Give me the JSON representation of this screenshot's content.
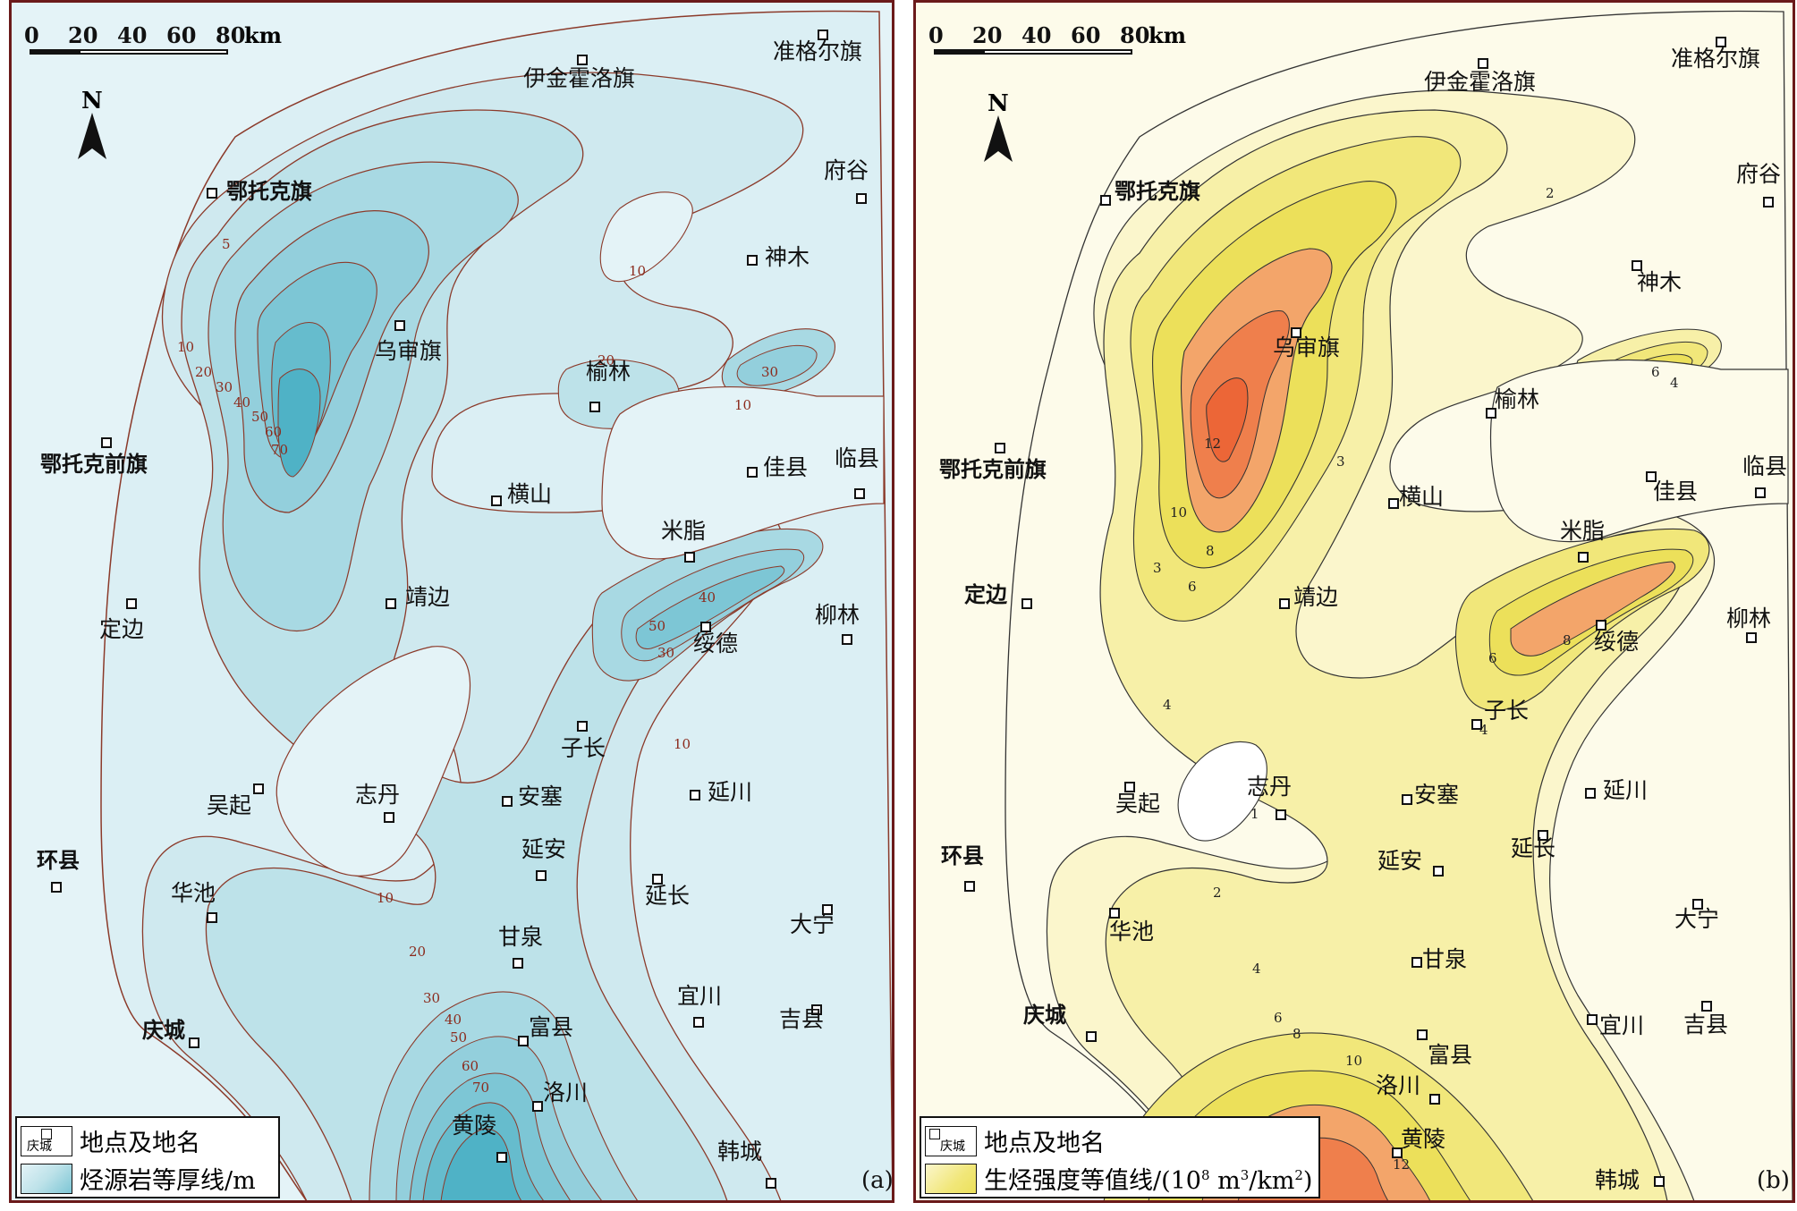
{
  "scale": {
    "ticks": [
      "0",
      "20",
      "40",
      "60",
      "80"
    ],
    "unit": "km"
  },
  "north": "N",
  "panel_a": {
    "tag": "(a)",
    "legend": {
      "place_sample": "庆城",
      "place_text": "地点及地名",
      "contour_text": "烃源岩等厚线/m"
    },
    "contour_labels": [
      "5",
      "10",
      "20",
      "30",
      "40",
      "50",
      "60",
      "70",
      "10",
      "20",
      "30",
      "10",
      "40",
      "50",
      "30",
      "10",
      "10",
      "20",
      "30",
      "40",
      "50",
      "60",
      "70"
    ],
    "places": [
      "伊金霍洛旗",
      "准格尔旗",
      "鄂托克旗",
      "府谷",
      "神木",
      "乌审旗",
      "榆林",
      "鄂托克前旗",
      "佳县",
      "临县",
      "横山",
      "米脂",
      "靖边",
      "定边",
      "绥德",
      "柳林",
      "子长",
      "吴起",
      "志丹",
      "安塞",
      "延川",
      "延安",
      "环县",
      "华池",
      "延长",
      "大宁",
      "甘泉",
      "宜川",
      "吉县",
      "庆城",
      "富县",
      "洛川",
      "黄陵",
      "韩城"
    ]
  },
  "panel_b": {
    "tag": "(b)",
    "legend": {
      "place_sample": "庆城",
      "place_text": "地点及地名",
      "contour_text_prefix": "生烃强度等值线/(10",
      "sup1": "8",
      "mid": " m",
      "sup2": "3",
      "mid2": "/km",
      "sup3": "2",
      "suffix": ")"
    },
    "contour_labels": [
      "2",
      "3",
      "4",
      "6",
      "8",
      "10",
      "12",
      "6",
      "4",
      "3",
      "8",
      "6",
      "4",
      "1",
      "2",
      "4",
      "6",
      "8",
      "10",
      "12"
    ],
    "places": [
      "伊金霍洛旗",
      "准格尔旗",
      "鄂托克旗",
      "府谷",
      "神木",
      "乌审旗",
      "榆林",
      "鄂托克前旗",
      "佳县",
      "临县",
      "横山",
      "米脂",
      "靖边",
      "定边",
      "绥德",
      "柳林",
      "子长",
      "吴起",
      "志丹",
      "安塞",
      "延川",
      "延安",
      "延长",
      "环县",
      "华池",
      "大宁",
      "甘泉",
      "宜川",
      "吉县",
      "庆城",
      "富县",
      "洛川",
      "黄陵",
      "韩城"
    ]
  },
  "colors": {
    "a_levels": [
      "#e4f3f7",
      "#d2ecf1",
      "#bfe3ea",
      "#a9dae4",
      "#93d0dd",
      "#7dc6d5",
      "#66bccd",
      "#4fb2c6"
    ],
    "b_levels": [
      "#fdfbea",
      "#fbf6cc",
      "#f7f0a8",
      "#f1e77a",
      "#ece05a",
      "#f3a56a",
      "#ef7f4c",
      "#ec6637"
    ]
  }
}
